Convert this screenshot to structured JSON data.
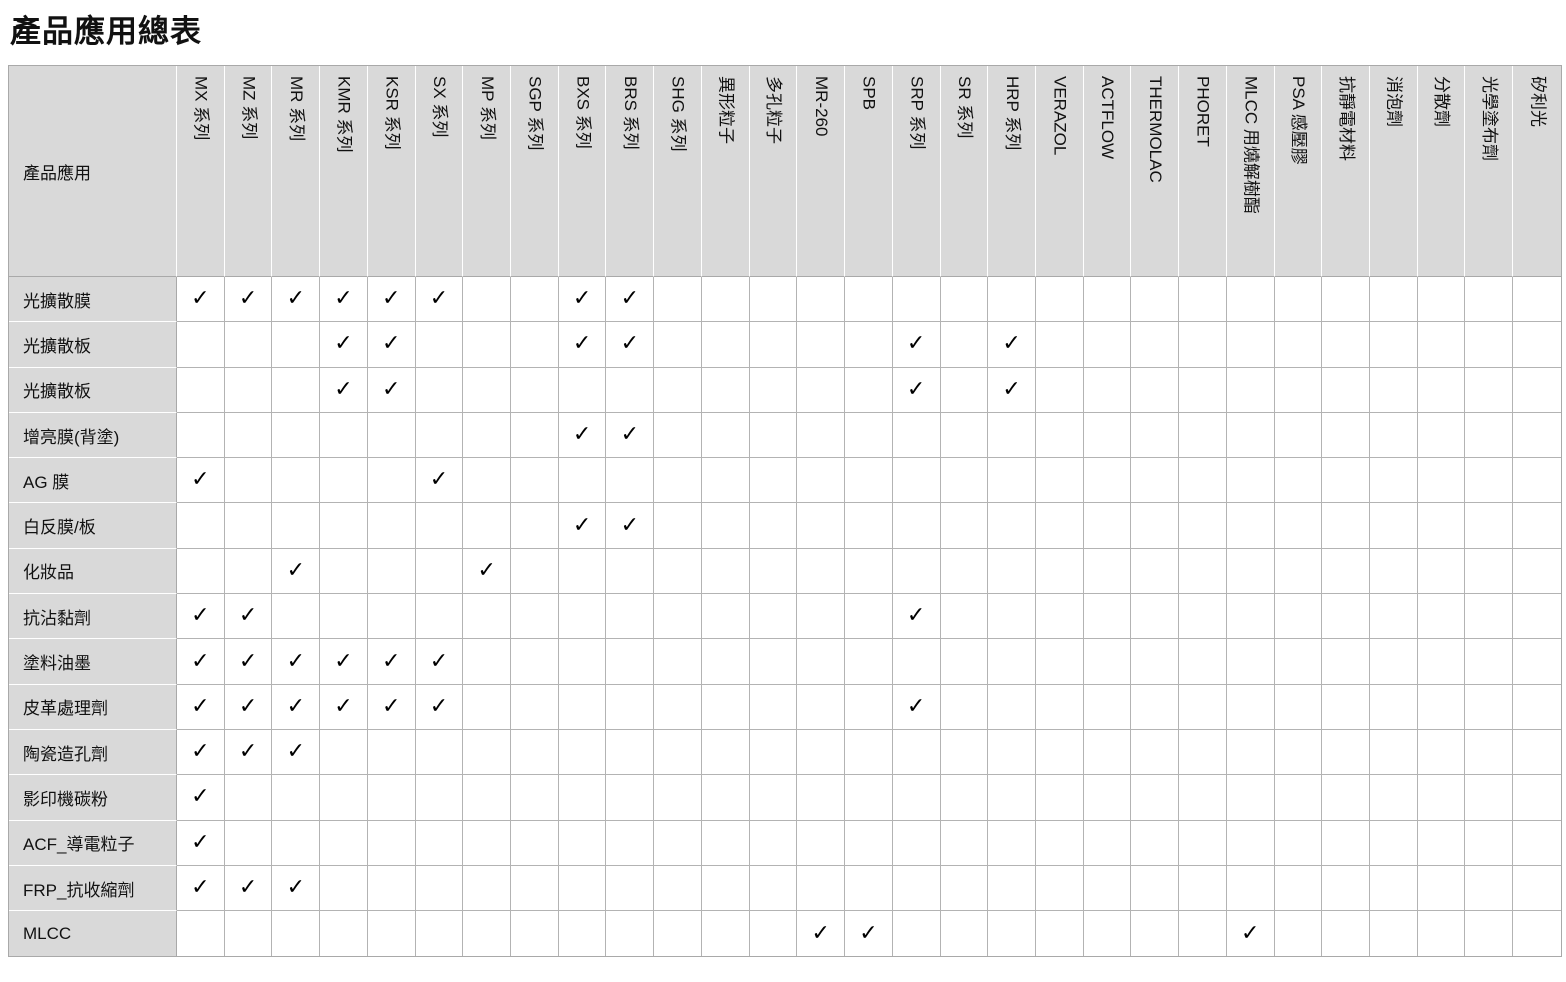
{
  "title": "產品應用總表",
  "table": {
    "corner_header": "產品應用",
    "check_glyph": "✓",
    "columns": [
      "MX 系列",
      "MZ 系列",
      "MR 系列",
      "KMR 系列",
      "KSR 系列",
      "SX 系列",
      "MP 系列",
      "SGP 系列",
      "BXS 系列",
      "BRS 系列",
      "SHG 系列",
      "異形粒子",
      "多孔粒子",
      "MR-260",
      "SPB",
      "SRP 系列",
      "SR 系列",
      "HRP 系列",
      "VERAZOL",
      "ACTFLOW",
      "THERMOLAC",
      "PHORET",
      "MLCC 用燒解樹酯",
      "PSA 感壓膠",
      "抗靜電材料",
      "消泡劑",
      "分散劑",
      "光學塗布劑",
      "矽利光"
    ],
    "rows": [
      {
        "label": "光擴散膜",
        "checks": [
          0,
          1,
          2,
          3,
          4,
          5,
          8,
          9
        ]
      },
      {
        "label": "光擴散板",
        "checks": [
          3,
          4,
          8,
          9,
          15,
          17
        ]
      },
      {
        "label": "光擴散板",
        "checks": [
          3,
          4,
          15,
          17
        ]
      },
      {
        "label": "增亮膜(背塗)",
        "checks": [
          8,
          9
        ]
      },
      {
        "label": "AG 膜",
        "checks": [
          0,
          5
        ]
      },
      {
        "label": "白反膜/板",
        "checks": [
          8,
          9
        ]
      },
      {
        "label": "化妝品",
        "checks": [
          2,
          6
        ]
      },
      {
        "label": "抗沾黏劑",
        "checks": [
          0,
          1,
          15
        ]
      },
      {
        "label": "塗料油墨",
        "checks": [
          0,
          1,
          2,
          3,
          4,
          5
        ]
      },
      {
        "label": "皮革處理劑",
        "checks": [
          0,
          1,
          2,
          3,
          4,
          5,
          15
        ]
      },
      {
        "label": "陶瓷造孔劑",
        "checks": [
          0,
          1,
          2
        ]
      },
      {
        "label": "影印機碳粉",
        "checks": [
          0
        ]
      },
      {
        "label": "ACF_導電粒子",
        "checks": [
          0
        ]
      },
      {
        "label": "FRP_抗收縮劑",
        "checks": [
          0,
          1,
          2
        ]
      },
      {
        "label": "MLCC",
        "checks": [
          13,
          14,
          22
        ]
      }
    ]
  },
  "colors": {
    "page_bg": "#ffffff",
    "header_bg": "#d9d9d9",
    "grid_line": "#b3b3b3",
    "outer_border": "#a9a9a9",
    "header_separator": "#ffffff",
    "text": "#111111",
    "check": "#000000"
  }
}
